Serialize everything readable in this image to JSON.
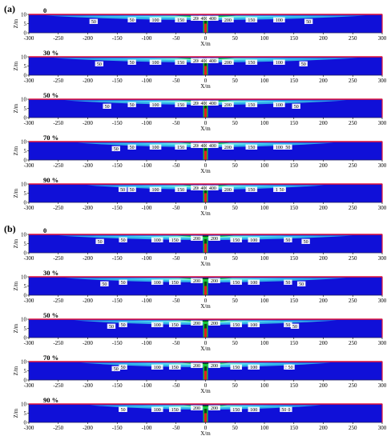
{
  "groups": [
    {
      "label": "(a)",
      "panels": [
        {
          "title": "0",
          "ring_labels": [
            "50",
            "50",
            "100",
            "150",
            "200",
            "400",
            "400",
            "200",
            "150",
            "100",
            "50"
          ]
        },
        {
          "title": "30 %",
          "ring_labels": [
            "50",
            "50",
            "100",
            "150",
            "200",
            "400",
            "400",
            "200",
            "150",
            "100",
            "50"
          ]
        },
        {
          "title": "50 %",
          "ring_labels": [
            "50",
            "50",
            "100",
            "150",
            "200",
            "400",
            "400",
            "200",
            "150",
            "100",
            "50"
          ]
        },
        {
          "title": "70 %",
          "ring_labels": [
            "50",
            "50",
            "100",
            "150",
            "200",
            "400",
            "400",
            "200",
            "150",
            "100",
            "50"
          ]
        },
        {
          "title": "90 %",
          "ring_labels": [
            "50",
            "50",
            "100",
            "150",
            "200",
            "400",
            "400",
            "200",
            "150",
            "100",
            "50"
          ]
        }
      ]
    },
    {
      "label": "(b)",
      "panels": [
        {
          "title": "0",
          "ring_labels": [
            "50",
            "50",
            "100",
            "150",
            "200",
            "200",
            "150",
            "100",
            "50",
            "50"
          ]
        },
        {
          "title": "30 %",
          "ring_labels": [
            "50",
            "50",
            "100",
            "150",
            "200",
            "200",
            "150",
            "100",
            "50",
            "50"
          ]
        },
        {
          "title": "50 %",
          "ring_labels": [
            "50",
            "50",
            "100",
            "150",
            "200",
            "200",
            "150",
            "100",
            "50",
            "50"
          ]
        },
        {
          "title": "70 %",
          "ring_labels": [
            "50",
            "50",
            "100",
            "150",
            "200",
            "200",
            "150",
            "100",
            "50",
            "50"
          ]
        },
        {
          "title": "90 %",
          "ring_labels": [
            "50",
            "50",
            "100",
            "150",
            "200",
            "200",
            "150",
            "100",
            "50",
            "50"
          ]
        }
      ]
    }
  ],
  "axes": {
    "ylabel": "Z/m",
    "xlabel": "X/m",
    "yticks": [
      "0",
      "5",
      "10"
    ],
    "xticks": [
      "-300",
      "-250",
      "-200",
      "-150",
      "-100",
      "-50",
      "0",
      "50",
      "100",
      "150",
      "200",
      "250",
      "300"
    ]
  },
  "colors": {
    "background": "#1010d8",
    "frame": "#e0103a",
    "level_light": "#2fa8e8",
    "level_cyan": "#58e0f0",
    "level_green": "#18c83a",
    "level_dark": "#0a4a10",
    "well": "#e02020"
  }
}
